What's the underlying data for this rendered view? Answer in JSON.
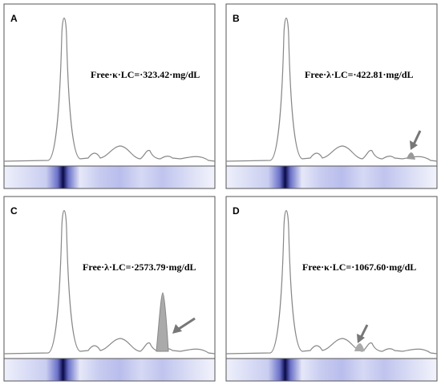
{
  "panels": [
    {
      "label": "A",
      "annotation": "Free·κ·LC=·323.42·mg/dL"
    },
    {
      "label": "B",
      "annotation": "Free·λ·LC=·422.81·mg/dL"
    },
    {
      "label": "C",
      "annotation": "Free·λ·LC=·2573.79·mg/dL"
    },
    {
      "label": "D",
      "annotation": "Free·κ·LC=·1067.60·mg/dL"
    }
  ]
}
